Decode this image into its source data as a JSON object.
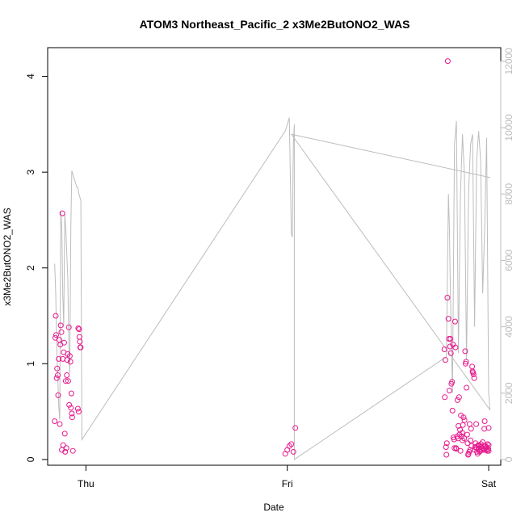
{
  "chart_data": {
    "type": "scatter",
    "title": "ATOM3 Northeast_Pacific_2 x3Me2ButONO2_WAS",
    "xlabel": "Date",
    "ylabel": "x3Me2ButONO2_WAS",
    "x_tick_labels": [
      "Thu",
      "Fri",
      "Sat"
    ],
    "x_tick_positions": [
      1,
      2,
      3
    ],
    "xlim": [
      0.81,
      3.06
    ],
    "ylim": [
      -0.06,
      4.3
    ],
    "y_ticks": [
      0,
      1,
      2,
      3,
      4
    ],
    "y2lim": [
      -172,
      12410
    ],
    "y2_ticks": [
      0,
      2000,
      4000,
      6000,
      8000,
      10000,
      12000
    ],
    "colors": {
      "points": "#e6198c",
      "altitude_line": "#bdbdbd",
      "axis": "#000000"
    },
    "series": [
      {
        "kind": "points",
        "x": [
          0.845,
          0.848,
          0.85,
          0.852,
          0.855,
          0.857,
          0.86,
          0.862,
          0.865,
          0.868,
          0.87,
          0.873,
          0.875,
          0.878,
          0.88,
          0.883,
          0.885,
          0.887,
          0.89,
          0.892,
          0.895,
          0.897,
          0.9,
          0.903,
          0.905,
          0.907,
          0.91,
          0.912,
          0.915,
          0.917,
          0.92,
          0.923,
          0.925,
          0.928,
          0.93,
          0.932,
          0.935,
          0.96,
          0.962,
          0.964,
          0.966,
          0.968,
          0.97,
          0.972,
          0.974,
          1.99,
          2.0,
          2.01,
          2.02,
          2.03,
          2.04,
          2.78,
          2.782,
          2.785,
          2.788,
          2.79,
          2.792,
          2.795,
          2.797,
          2.8,
          2.803,
          2.805,
          2.808,
          2.81,
          2.812,
          2.815,
          2.818,
          2.82,
          2.823,
          2.825,
          2.828,
          2.83,
          2.833,
          2.835,
          2.838,
          2.84,
          2.843,
          2.845,
          2.848,
          2.85,
          2.853,
          2.855,
          2.858,
          2.86,
          2.862,
          2.865,
          2.868,
          2.87,
          2.872,
          2.875,
          2.878,
          2.88,
          2.883,
          2.885,
          2.888,
          2.89,
          2.893,
          2.895,
          2.898,
          2.9,
          2.903,
          2.905,
          2.908,
          2.91,
          2.913,
          2.915,
          2.918,
          2.92,
          2.922,
          2.925,
          2.928,
          2.93,
          2.932,
          2.935,
          2.938,
          2.94,
          2.942,
          2.945,
          2.948,
          2.95,
          2.952,
          2.955,
          2.958,
          2.96,
          2.962,
          2.965,
          2.968,
          2.97,
          2.972,
          2.975,
          2.978,
          2.98,
          2.982,
          2.985,
          2.988,
          2.99,
          2.993,
          2.995,
          2.998,
          3.0,
          3.0,
          3.0
        ],
        "y": [
          0.4,
          1.27,
          1.5,
          1.3,
          0.85,
          0.95,
          0.88,
          0.67,
          1.05,
          1.25,
          0.37,
          1.2,
          1.4,
          1.33,
          0.1,
          2.57,
          1.05,
          0.15,
          1.12,
          1.22,
          0.27,
          0.08,
          0.82,
          0.12,
          0.88,
          1.04,
          1.1,
          0.82,
          1.38,
          0.57,
          1.08,
          1.02,
          0.54,
          0.69,
          0.48,
          0.44,
          0.09,
          0.53,
          1.37,
          0.5,
          1.36,
          1.28,
          1.23,
          1.17,
          1.17,
          0.06,
          0.1,
          0.14,
          0.16,
          0.08,
          0.33,
          1.15,
          0.65,
          1.04,
          0.13,
          0.05,
          0.17,
          1.69,
          4.16,
          1.47,
          1.26,
          0.72,
          1.18,
          1.26,
          1.11,
          0.79,
          0.81,
          0.51,
          1.2,
          0.23,
          0.21,
          0.12,
          1.44,
          1.17,
          0.12,
          0.11,
          0.24,
          0.62,
          0.22,
          0.35,
          0.65,
          0.26,
          0.31,
          0.09,
          0.46,
          0.24,
          0.28,
          0.2,
          0.36,
          0.44,
          0.22,
          0.41,
          1.13,
          1.0,
          1.02,
          0.75,
          0.26,
          0.17,
          0.05,
          0.06,
          0.08,
          0.37,
          0.1,
          0.2,
          0.32,
          0.14,
          0.97,
          0.92,
          0.91,
          0.89,
          0.85,
          0.1,
          0.13,
          0.17,
          0.37,
          0.12,
          0.08,
          0.06,
          0.15,
          0.14,
          0.11,
          0.08,
          0.09,
          0.13,
          0.16,
          0.1,
          0.12,
          0.18,
          0.14,
          0.1,
          0.32,
          0.4,
          0.14,
          0.12,
          0.1,
          0.13,
          0.09,
          0.16,
          0.11,
          0.33,
          0.15,
          0.09
        ]
      },
      {
        "kind": "altitude_line",
        "x": [
          0.845,
          0.85,
          0.855,
          0.86,
          0.865,
          0.87,
          0.875,
          0.88,
          0.885,
          0.89,
          0.895,
          0.9,
          0.905,
          0.91,
          0.915,
          0.92,
          0.925,
          0.93,
          0.935,
          0.94,
          0.945,
          0.95,
          0.955,
          0.96,
          0.965,
          0.97,
          0.975,
          0.98,
          1.99,
          2.0,
          2.01,
          2.02,
          2.025,
          2.03,
          2.035,
          2.035,
          2.79,
          2.8,
          2.805,
          2.81,
          2.82,
          2.83,
          2.84,
          2.85,
          2.86,
          2.87,
          2.88,
          2.89,
          2.9,
          2.91,
          2.92,
          2.93,
          2.94,
          2.95,
          2.96,
          2.97,
          2.98,
          2.99,
          3.0,
          3.003,
          3.006,
          2.02,
          3.006,
          3.008,
          3.008
        ],
        "y2": [
          5900,
          5000,
          3500,
          2500,
          1600,
          1200,
          7500,
          7000,
          5000,
          4000,
          7400,
          7000,
          6200,
          5500,
          3500,
          2600,
          7000,
          8700,
          8600,
          8500,
          8400,
          8300,
          8200,
          8200,
          8000,
          7900,
          7800,
          600,
          9900,
          10100,
          10300,
          6800,
          6700,
          9500,
          10100,
          0,
          3100,
          8000,
          7000,
          5000,
          2000,
          9500,
          10200,
          3200,
          8000,
          9800,
          8500,
          3000,
          8000,
          9500,
          9800,
          4000,
          9000,
          9900,
          9000,
          5000,
          7000,
          9700,
          2000,
          1800,
          1500,
          9800,
          8500,
          8500,
          8500
        ]
      }
    ]
  }
}
